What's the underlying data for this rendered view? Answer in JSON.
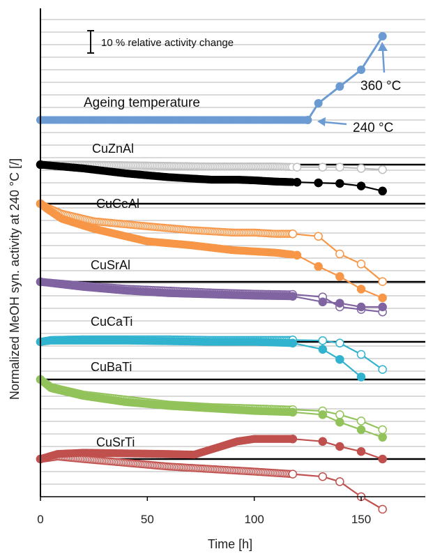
{
  "chart_data": {
    "type": "line",
    "xlabel": "Time [h]",
    "ylabel": "Normalized MeOH syn. activity at 240 °C [/]",
    "xlim": [
      0,
      180
    ],
    "x_ticks": [
      0,
      50,
      100,
      150
    ],
    "grid": "horizontal",
    "scale_bar_label": "10 % relative activity change",
    "colors": {
      "temperature": "#6b9bd2",
      "CuZnAl": "#000000",
      "CuZnAl_fresh": "#bfbfbf",
      "CuCeAl": "#f79646",
      "CuSrAl": "#8064a2",
      "CuCaTi": "#31b3cf",
      "CuBaTi": "#92c35a",
      "CuSrTi": "#c0504d"
    },
    "temperature_profile": {
      "label": "Ageing temperature",
      "start_label": "240 °C",
      "end_label": "360 °C",
      "x": [
        0,
        125,
        130,
        140,
        150,
        160
      ],
      "y": [
        240,
        240,
        264,
        288,
        312,
        360
      ]
    },
    "panels": [
      {
        "catalyst": "CuZnAl",
        "series": [
          {
            "style": "filled",
            "color": "#000000",
            "x": [
              0,
              20,
              40,
              60,
              80,
              92,
              100,
              110,
              120,
              130,
              140,
              150,
              160
            ],
            "y": [
              1.0,
              0.97,
              0.93,
              0.9,
              0.88,
              0.88,
              0.875,
              0.865,
              0.86,
              0.855,
              0.85,
              0.83,
              0.79
            ]
          },
          {
            "style": "open",
            "color": "#bfbfbf",
            "x": [
              0,
              20,
              40,
              60,
              80,
              92,
              100,
              110,
              120,
              132,
              140,
              150,
              160
            ],
            "y": [
              1.0,
              1.0,
              0.995,
              0.99,
              0.985,
              0.985,
              0.985,
              0.985,
              0.98,
              0.98,
              0.98,
              0.97,
              0.96
            ]
          }
        ]
      },
      {
        "catalyst": "CuCeAl",
        "series": [
          {
            "style": "filled",
            "color": "#f79646",
            "x": [
              0,
              3,
              10,
              25,
              50,
              70,
              90,
              100,
              110,
              120,
              130,
              140,
              150,
              160
            ],
            "y": [
              1.0,
              0.96,
              0.88,
              0.8,
              0.7,
              0.67,
              0.63,
              0.62,
              0.61,
              0.59,
              0.5,
              0.42,
              0.32,
              0.25
            ]
          },
          {
            "style": "open",
            "color": "#f79646",
            "x": [
              0,
              3,
              10,
              25,
              50,
              70,
              90,
              100,
              110,
              118,
              130,
              140,
              150,
              160
            ],
            "y": [
              1.0,
              0.97,
              0.92,
              0.86,
              0.82,
              0.79,
              0.77,
              0.77,
              0.76,
              0.76,
              0.74,
              0.6,
              0.52,
              0.38
            ]
          }
        ]
      },
      {
        "catalyst": "CuSrAl",
        "series": [
          {
            "style": "filled",
            "color": "#8064a2",
            "x": [
              0,
              20,
              40,
              60,
              80,
              100,
              118,
              132,
              140,
              150,
              160
            ],
            "y": [
              1.0,
              0.96,
              0.93,
              0.91,
              0.9,
              0.89,
              0.885,
              0.84,
              0.83,
              0.8,
              0.8
            ]
          },
          {
            "style": "open",
            "color": "#8064a2",
            "x": [
              0,
              20,
              40,
              60,
              80,
              100,
              118,
              132,
              140,
              150,
              160
            ],
            "y": [
              1.0,
              0.97,
              0.945,
              0.93,
              0.915,
              0.905,
              0.9,
              0.88,
              0.8,
              0.78,
              0.76
            ]
          }
        ]
      },
      {
        "catalyst": "CuCaTi",
        "series": [
          {
            "style": "filled",
            "color": "#31b3cf",
            "x": [
              0,
              5,
              20,
              40,
              60,
              80,
              100,
              118,
              132,
              140,
              150
            ],
            "y": [
              1.0,
              1.01,
              1.01,
              1.01,
              1.005,
              1.0,
              1.0,
              0.99,
              0.94,
              0.86,
              0.72
            ]
          },
          {
            "style": "open",
            "color": "#31b3cf",
            "x": [
              0,
              5,
              20,
              40,
              60,
              80,
              100,
              118,
              132,
              140,
              150,
              160
            ],
            "y": [
              1.0,
              1.015,
              1.02,
              1.02,
              1.02,
              1.015,
              1.015,
              1.015,
              1.01,
              0.99,
              0.9,
              0.78
            ]
          }
        ]
      },
      {
        "catalyst": "CuBaTi",
        "series": [
          {
            "style": "filled",
            "color": "#92c35a",
            "x": [
              0,
              5,
              20,
              40,
              60,
              80,
              100,
              118,
              132,
              140,
              150,
              160
            ],
            "y": [
              1.0,
              0.93,
              0.87,
              0.82,
              0.79,
              0.77,
              0.75,
              0.74,
              0.72,
              0.66,
              0.6,
              0.54
            ]
          },
          {
            "style": "open",
            "color": "#92c35a",
            "x": [
              0,
              5,
              20,
              40,
              60,
              80,
              100,
              118,
              132,
              140,
              150,
              160
            ],
            "y": [
              1.0,
              0.94,
              0.88,
              0.84,
              0.8,
              0.78,
              0.77,
              0.76,
              0.75,
              0.72,
              0.67,
              0.6
            ]
          }
        ]
      },
      {
        "catalyst": "CuSrTi",
        "series": [
          {
            "style": "filled",
            "color": "#c0504d",
            "x": [
              0,
              8,
              20,
              40,
              60,
              72,
              92,
              100,
              110,
              118,
              132,
              140,
              150,
              160
            ],
            "y": [
              1.0,
              1.04,
              1.05,
              1.045,
              1.04,
              1.035,
              1.14,
              1.16,
              1.16,
              1.16,
              1.14,
              1.1,
              1.06,
              1.0
            ]
          },
          {
            "style": "open",
            "color": "#c0504d",
            "x": [
              0,
              8,
              20,
              40,
              60,
              80,
              100,
              118,
              132,
              140,
              150,
              160
            ],
            "y": [
              1.0,
              1.02,
              1.0,
              0.97,
              0.94,
              0.92,
              0.9,
              0.88,
              0.86,
              0.82,
              0.7,
              0.6
            ]
          }
        ]
      }
    ]
  }
}
